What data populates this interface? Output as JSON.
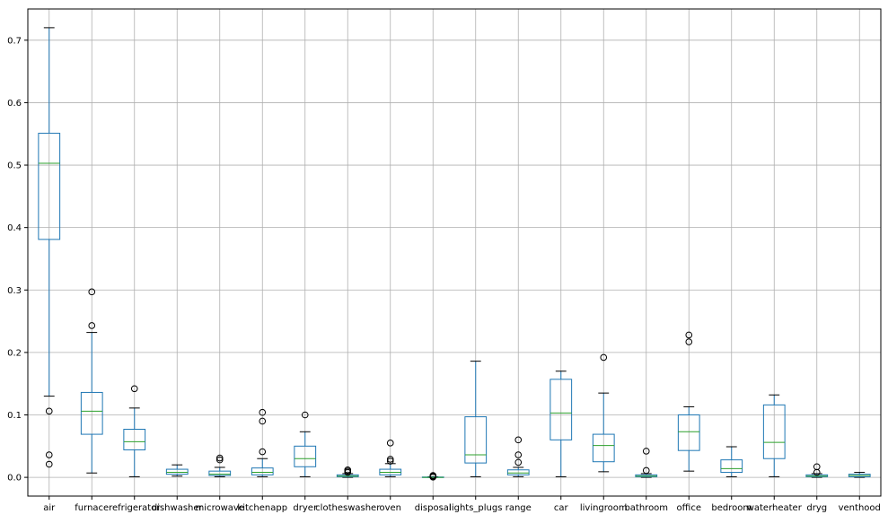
{
  "chart_data": {
    "type": "boxplot",
    "title": "",
    "xlabel": "",
    "ylabel": "",
    "ylim": [
      -0.03,
      0.75
    ],
    "yticks": [
      0.0,
      0.1,
      0.2,
      0.3,
      0.4,
      0.5,
      0.6,
      0.7
    ],
    "ytick_labels": [
      "0.0",
      "0.1",
      "0.2",
      "0.3",
      "0.4",
      "0.5",
      "0.6",
      "0.7"
    ],
    "grid": true,
    "colors": {
      "box": "#1f77b4",
      "median": "#2ca02c",
      "whisker_cap": "#000000",
      "grid": "#b0b0b0",
      "flier": "#000000"
    },
    "categories": [
      "air",
      "furnace",
      "refrigerator",
      "dishwasher",
      "microwave",
      "kitchenapp",
      "dryer",
      "clotheswasher",
      "oven",
      "disposal",
      "lights_plugs",
      "range",
      "car",
      "livingroom",
      "bathroom",
      "office",
      "bedroom",
      "waterheater",
      "dryg",
      "venthood"
    ],
    "boxes": [
      {
        "label": "air",
        "whislo": 0.13,
        "q1": 0.381,
        "med": 0.503,
        "q3": 0.551,
        "whishi": 0.72,
        "fliers": [
          0.106,
          0.036,
          0.021
        ]
      },
      {
        "label": "furnace",
        "whislo": 0.007,
        "q1": 0.069,
        "med": 0.106,
        "q3": 0.136,
        "whishi": 0.232,
        "fliers": [
          0.297,
          0.243
        ]
      },
      {
        "label": "refrigerator",
        "whislo": 0.001,
        "q1": 0.044,
        "med": 0.057,
        "q3": 0.077,
        "whishi": 0.111,
        "fliers": [
          0.142
        ]
      },
      {
        "label": "dishwasher",
        "whislo": 0.002,
        "q1": 0.005,
        "med": 0.008,
        "q3": 0.013,
        "whishi": 0.02,
        "fliers": []
      },
      {
        "label": "microwave",
        "whislo": 0.001,
        "q1": 0.003,
        "med": 0.005,
        "q3": 0.01,
        "whishi": 0.016,
        "fliers": [
          0.031,
          0.028
        ]
      },
      {
        "label": "kitchenapp",
        "whislo": 0.001,
        "q1": 0.004,
        "med": 0.008,
        "q3": 0.015,
        "whishi": 0.03,
        "fliers": [
          0.104,
          0.09,
          0.041
        ]
      },
      {
        "label": "dryer",
        "whislo": 0.001,
        "q1": 0.017,
        "med": 0.03,
        "q3": 0.05,
        "whishi": 0.073,
        "fliers": [
          0.1
        ]
      },
      {
        "label": "clotheswasher",
        "whislo": 0.0,
        "q1": 0.001,
        "med": 0.002,
        "q3": 0.004,
        "whishi": 0.006,
        "fliers": [
          0.012,
          0.01,
          0.008
        ]
      },
      {
        "label": "oven",
        "whislo": 0.001,
        "q1": 0.004,
        "med": 0.008,
        "q3": 0.013,
        "whishi": 0.022,
        "fliers": [
          0.055,
          0.029,
          0.026
        ]
      },
      {
        "label": "disposal",
        "whislo": 0.0,
        "q1": 0.0,
        "med": 0.0,
        "q3": 0.0005,
        "whishi": 0.001,
        "fliers": [
          0.003,
          0.002,
          0.001,
          0.0005
        ]
      },
      {
        "label": "lights_plugs",
        "whislo": 0.001,
        "q1": 0.023,
        "med": 0.036,
        "q3": 0.097,
        "whishi": 0.186,
        "fliers": []
      },
      {
        "label": "range",
        "whislo": 0.001,
        "q1": 0.004,
        "med": 0.007,
        "q3": 0.012,
        "whishi": 0.016,
        "fliers": [
          0.06,
          0.036,
          0.024
        ]
      },
      {
        "label": "car",
        "whislo": 0.001,
        "q1": 0.06,
        "med": 0.103,
        "q3": 0.157,
        "whishi": 0.17,
        "fliers": []
      },
      {
        "label": "livingroom",
        "whislo": 0.009,
        "q1": 0.025,
        "med": 0.051,
        "q3": 0.069,
        "whishi": 0.135,
        "fliers": [
          0.192
        ]
      },
      {
        "label": "bathroom",
        "whislo": 0.0,
        "q1": 0.001,
        "med": 0.002,
        "q3": 0.004,
        "whishi": 0.006,
        "fliers": [
          0.042,
          0.011
        ]
      },
      {
        "label": "office",
        "whislo": 0.01,
        "q1": 0.043,
        "med": 0.073,
        "q3": 0.1,
        "whishi": 0.113,
        "fliers": [
          0.228,
          0.217
        ]
      },
      {
        "label": "bedroom",
        "whislo": 0.001,
        "q1": 0.008,
        "med": 0.014,
        "q3": 0.028,
        "whishi": 0.049,
        "fliers": []
      },
      {
        "label": "waterheater",
        "whislo": 0.001,
        "q1": 0.03,
        "med": 0.056,
        "q3": 0.116,
        "whishi": 0.132,
        "fliers": []
      },
      {
        "label": "dryg",
        "whislo": 0.0,
        "q1": 0.001,
        "med": 0.002,
        "q3": 0.004,
        "whishi": 0.006,
        "fliers": [
          0.017,
          0.008
        ]
      },
      {
        "label": "venthood",
        "whislo": 0.0,
        "q1": 0.001,
        "med": 0.003,
        "q3": 0.005,
        "whishi": 0.008,
        "fliers": []
      }
    ]
  }
}
